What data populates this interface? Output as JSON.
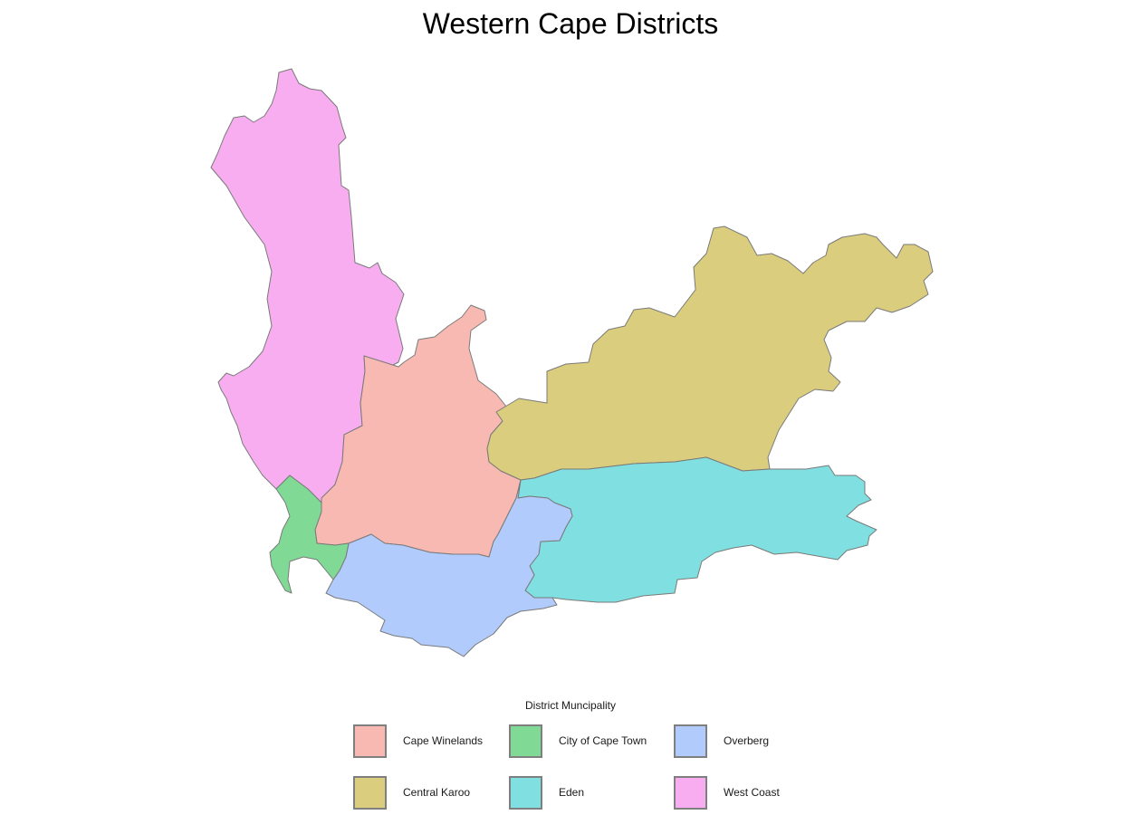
{
  "title": "Western Cape Districts",
  "legend": {
    "title": "District Muncipality",
    "items": [
      {
        "label": "Cape Winelands",
        "color": "#F8B9B2"
      },
      {
        "label": "City of Cape Town",
        "color": "#80DA95"
      },
      {
        "label": "Overberg",
        "color": "#B0CBFC"
      },
      {
        "label": "Central Karoo",
        "color": "#DBCD7E"
      },
      {
        "label": "Eden",
        "color": "#80DFE0"
      },
      {
        "label": "West Coast",
        "color": "#F8ADF0"
      }
    ]
  },
  "regions": [
    {
      "name": "West Coast",
      "color": "#F8ADF0"
    },
    {
      "name": "Cape Winelands",
      "color": "#F8B9B2"
    },
    {
      "name": "Central Karoo",
      "color": "#DBCD7E"
    },
    {
      "name": "Eden",
      "color": "#80DFE0"
    },
    {
      "name": "Overberg",
      "color": "#B0CBFC"
    },
    {
      "name": "City of Cape Town",
      "color": "#80DA95"
    }
  ]
}
